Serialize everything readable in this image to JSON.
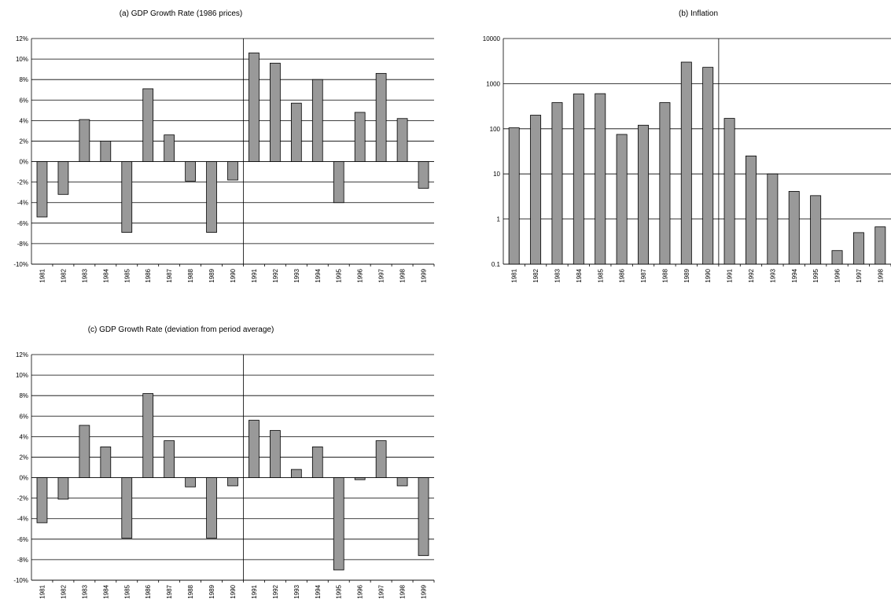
{
  "colors": {
    "bar_fill": "#999999",
    "bar_stroke": "#000000",
    "grid": "#000000",
    "background": "#ffffff"
  },
  "chart_data": [
    {
      "type": "bar",
      "title": "(a) GDP Growth Rate (1986 prices)",
      "xlabel": "",
      "ylabel": "",
      "categories": [
        "1981",
        "1982",
        "1983",
        "1984",
        "1985",
        "1986",
        "1987",
        "1988",
        "1989",
        "1990",
        "1991",
        "1992",
        "1993",
        "1994",
        "1995",
        "1996",
        "1997",
        "1998",
        "1999"
      ],
      "values": [
        -5.4,
        -3.2,
        4.1,
        2.0,
        -6.9,
        7.1,
        2.6,
        -1.9,
        -6.9,
        -1.8,
        10.6,
        9.6,
        5.7,
        8.0,
        -4.0,
        4.8,
        8.6,
        4.2,
        -2.6
      ],
      "value_unit": "%",
      "ylim": [
        -10,
        12
      ],
      "yticks": [
        -10,
        -8,
        -6,
        -4,
        -2,
        0,
        2,
        4,
        6,
        8,
        10,
        12
      ],
      "ytick_labels": [
        "-10%",
        "-8%",
        "-6%",
        "-4%",
        "-2%",
        "0%",
        "2%",
        "4%",
        "6%",
        "8%",
        "10%",
        "12%"
      ],
      "yscale": "linear",
      "grid": true,
      "divider_after_category": "1990",
      "legend": "none"
    },
    {
      "type": "bar",
      "title": "(b) Inflation",
      "xlabel": "",
      "ylabel": "",
      "categories": [
        "1981",
        "1982",
        "1983",
        "1984",
        "1985",
        "1986",
        "1987",
        "1988",
        "1989",
        "1990",
        "1991",
        "1992",
        "1993",
        "1994",
        "1995",
        "1996",
        "1997",
        "1998"
      ],
      "values": [
        105,
        200,
        380,
        590,
        600,
        75,
        120,
        380,
        3000,
        2300,
        170,
        25,
        10,
        4.1,
        3.3,
        0.2,
        0.5,
        0.67
      ],
      "ylim": [
        0.1,
        10000
      ],
      "yticks": [
        0.1,
        1,
        10,
        100,
        1000,
        10000
      ],
      "ytick_labels": [
        "0.1",
        "1",
        "10",
        "100",
        "1000",
        "10000"
      ],
      "yscale": "log",
      "grid": true,
      "divider_after_category": "1990",
      "legend": "none"
    },
    {
      "type": "bar",
      "title": "(c) GDP Growth Rate (deviation from period average)",
      "xlabel": "",
      "ylabel": "",
      "categories": [
        "1981",
        "1982",
        "1983",
        "1984",
        "1985",
        "1986",
        "1987",
        "1988",
        "1989",
        "1990",
        "1991",
        "1992",
        "1993",
        "1994",
        "1995",
        "1996",
        "1997",
        "1998",
        "1999"
      ],
      "values": [
        -4.4,
        -2.1,
        5.1,
        3.0,
        -5.9,
        8.2,
        3.6,
        -0.9,
        -5.9,
        -0.8,
        5.6,
        4.6,
        0.8,
        3.0,
        -9.0,
        -0.2,
        3.6,
        -0.8,
        -7.6
      ],
      "value_unit": "%",
      "ylim": [
        -10,
        12
      ],
      "yticks": [
        -10,
        -8,
        -6,
        -4,
        -2,
        0,
        2,
        4,
        6,
        8,
        10,
        12
      ],
      "ytick_labels": [
        "-10%",
        "-8%",
        "-6%",
        "-4%",
        "-2%",
        "0%",
        "2%",
        "4%",
        "6%",
        "8%",
        "10%",
        "12%"
      ],
      "yscale": "linear",
      "grid": true,
      "divider_after_category": "1990",
      "legend": "none"
    }
  ]
}
